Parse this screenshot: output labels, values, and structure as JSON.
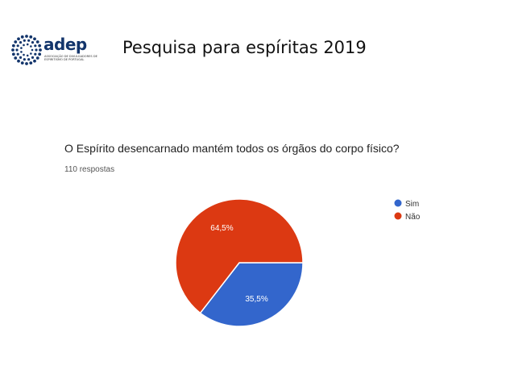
{
  "header": {
    "logo_text": "adep",
    "logo_tagline": "Associação de Divulgadores de Espiritismo de Portugal",
    "title": "Pesquisa para espíritas  2019"
  },
  "survey": {
    "question": "O Espírito desencarnado mantém todos os órgãos do corpo físico?",
    "responses": "110 respostas"
  },
  "chart_data": {
    "type": "pie",
    "title": "",
    "slices": [
      {
        "label": "Sim",
        "value": 35.5,
        "value_label": "35,5%",
        "color": "#3366cc"
      },
      {
        "label": "Não",
        "value": 64.5,
        "value_label": "64,5%",
        "color": "#dc3912"
      }
    ],
    "legend": "right"
  },
  "colors": {
    "logo": "#13356b",
    "sim": "#3366cc",
    "nao": "#dc3912"
  }
}
